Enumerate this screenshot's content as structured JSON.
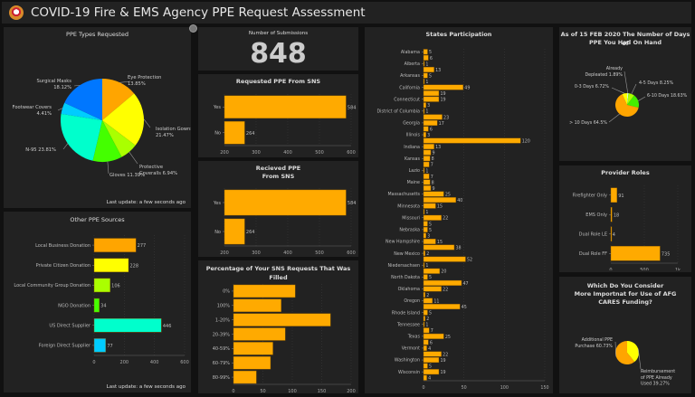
{
  "header": {
    "title": "COVID-19 Fire & EMS Agency PPE Request Assessment",
    "logo_icon": "fire-ems-badge-icon"
  },
  "ppe_types": {
    "title": "PPE Types Requested",
    "last_update": "Last update: a few seconds ago",
    "chart_data": {
      "type": "pie",
      "title": "PPE Types Requested",
      "slices": [
        {
          "label": "Eye Protection",
          "value": 13.85,
          "color": "#ffa500"
        },
        {
          "label": "Isolation Gowns",
          "value": 21.47,
          "color": "#ffff00"
        },
        {
          "label": "Protective Coveralls",
          "value": 6.94,
          "color": "#aaff00"
        },
        {
          "label": "Gloves",
          "value": 11.39,
          "color": "#44ff00"
        },
        {
          "label": "N-95",
          "value": 23.81,
          "color": "#00ffcc"
        },
        {
          "label": "Footwear Covers",
          "value": 4.41,
          "color": "#00ccff"
        },
        {
          "label": "Surgical Masks",
          "value": 18.12,
          "color": "#0077ff"
        }
      ],
      "labels": [
        "Eye Protection\n13.85%",
        "Isolation Gowns\n21.47%",
        "Protective\nCoveralls 6.94%",
        "Gloves 11.39%",
        "N-95 23.81%",
        "Footwear Covers\n4.41%",
        "Surgical Masks\n18.12%"
      ]
    }
  },
  "other_sources": {
    "title": "Other PPE Sources",
    "last_update": "Last update: a few seconds ago",
    "chart_data": {
      "type": "bar",
      "orientation": "horizontal",
      "title": "Other PPE Sources",
      "categories": [
        "Local Business Donation",
        "Private Citizen Donation",
        "Local Community Group Donation",
        "NGO Donation",
        "US Direct Supplier",
        "Foreign Direct Supplier"
      ],
      "values": [
        277,
        228,
        106,
        34,
        446,
        77
      ],
      "colors": [
        "#ffa500",
        "#ffff00",
        "#aaff00",
        "#44ff00",
        "#00ffcc",
        "#00ccff"
      ],
      "xlim": [
        0,
        600
      ],
      "xticks": [
        0,
        200,
        400,
        600
      ]
    }
  },
  "submissions": {
    "title": "Number of Submissions",
    "value": "848"
  },
  "requested_sns": {
    "title": "Requested PPE From SNS",
    "chart_data": {
      "type": "bar",
      "orientation": "horizontal",
      "title": "Requested PPE From SNS",
      "categories": [
        "Yes",
        "No"
      ],
      "values": [
        584,
        264
      ],
      "xlim": [
        200,
        600
      ],
      "xticks": [
        200,
        300,
        400,
        500,
        600
      ]
    }
  },
  "received_sns": {
    "title_lines": [
      "Recieved PPE",
      "From SNS"
    ],
    "chart_data": {
      "type": "bar",
      "orientation": "horizontal",
      "title": "Recieved PPE From SNS",
      "categories": [
        "Yes",
        "No"
      ],
      "values": [
        584,
        264
      ],
      "xlim": [
        200,
        600
      ],
      "xticks": [
        200,
        300,
        400,
        500,
        600
      ]
    }
  },
  "pct_filled": {
    "title": "Percentage of Your SNS Requests That Was Filled",
    "chart_data": {
      "type": "bar",
      "orientation": "horizontal",
      "title": "Percentage of Your SNS Requests That Was Filled",
      "categories": [
        "0%",
        "100%",
        "1-20%",
        "20-39%",
        "40-59%",
        "60-79%",
        "80-99%"
      ],
      "values": [
        105,
        81,
        165,
        88,
        67,
        63,
        39
      ],
      "xlim": [
        0,
        200
      ],
      "xticks": [
        0,
        50,
        100,
        150,
        200
      ]
    }
  },
  "states": {
    "title": "States Participation",
    "chart_data": {
      "type": "bar",
      "orientation": "horizontal",
      "title": "States Participation",
      "categories": [
        "Alabama",
        "",
        "Alberta",
        "",
        "Arkansas",
        "",
        "California",
        "",
        "Connecticut",
        "",
        "District of Columbia",
        "",
        "Georgia",
        "",
        "Illinois",
        "",
        "Indiana",
        "",
        "Kansas",
        "",
        "Lazio",
        "",
        "Maine",
        "",
        "Massachusetts",
        "",
        "Minnesota",
        "",
        "Missouri",
        "",
        "Nebraska",
        "",
        "New Hampshire",
        "",
        "New Mexico",
        "",
        "Niedersachsen",
        "",
        "North Dakota",
        "",
        "Oklahoma",
        "",
        "Oregon",
        "",
        "Rhode Island",
        "",
        "Tennessee",
        "",
        "Texas",
        "",
        "Vermont",
        "",
        "Washington",
        "",
        "Wisconsin",
        ""
      ],
      "values": [
        5,
        6,
        1,
        13,
        5,
        1,
        49,
        19,
        19,
        3,
        1,
        23,
        17,
        6,
        3,
        120,
        13,
        9,
        8,
        7,
        1,
        7,
        8,
        9,
        25,
        40,
        15,
        1,
        22,
        5,
        5,
        3,
        15,
        38,
        2,
        52,
        1,
        20,
        5,
        47,
        22,
        2,
        11,
        45,
        5,
        2,
        1,
        7,
        25,
        6,
        4,
        22,
        19,
        5,
        19,
        4
      ],
      "xlim": [
        0,
        150
      ],
      "xticks": [
        0,
        50,
        100,
        150
      ]
    }
  },
  "days_on_hand": {
    "title_lines": [
      "As of 15 FEB 2020 The Number of Days of",
      "PPE You Had On Hand"
    ],
    "chart_data": {
      "type": "pie",
      "title": "As of 15 FEB 2020 The Number of Days of PPE You Had On Hand",
      "slices": [
        {
          "label": "Already Depleated",
          "value": 1.89,
          "color": "#ccffcc"
        },
        {
          "label": "4-5 Days",
          "value": 8.25,
          "color": "#aaff00"
        },
        {
          "label": "6-10 Days",
          "value": 18.63,
          "color": "#44ee00"
        },
        {
          "label": "> 10 Days",
          "value": 64.5,
          "color": "#ffa500"
        },
        {
          "label": "0-3 Days",
          "value": 6.72,
          "color": "#ffff00"
        }
      ],
      "labels": [
        "Already\nDepleated 1.89%",
        "4-5 Days 8.25%",
        "6-10 Days 18.63%",
        "> 10 Days 64.5%",
        "0-3 Days 6.72%"
      ]
    }
  },
  "provider_roles": {
    "title": "Provider Roles",
    "chart_data": {
      "type": "bar",
      "orientation": "horizontal",
      "title": "Provider Roles",
      "categories": [
        "Firefighter Only",
        "EMS Only",
        "Dual Role LE",
        "Dual Role FF"
      ],
      "values": [
        91,
        18,
        4,
        735
      ],
      "xlim": [
        0,
        1000
      ],
      "xticks": [
        "0",
        "500",
        "1k"
      ]
    }
  },
  "afg": {
    "title_lines": [
      "Which Do You Consider",
      "More Importnat for Use of AFG",
      "CARES Funding?"
    ],
    "chart_data": {
      "type": "pie",
      "title": "Which Do You Consider More Importnat for Use of AFG CARES Funding?",
      "slices": [
        {
          "label": "Reimbursement of PPE Already Used",
          "value": 39.27,
          "color": "#ffff00"
        },
        {
          "label": "Additional PPE Purchase",
          "value": 60.73,
          "color": "#ffa500"
        }
      ],
      "labels": [
        "Reimbursement\nof PPE Already\nUsed 39.27%",
        "Additional PPE\nPurchase 60.73%"
      ]
    }
  },
  "bar_color": "#ffaa00"
}
